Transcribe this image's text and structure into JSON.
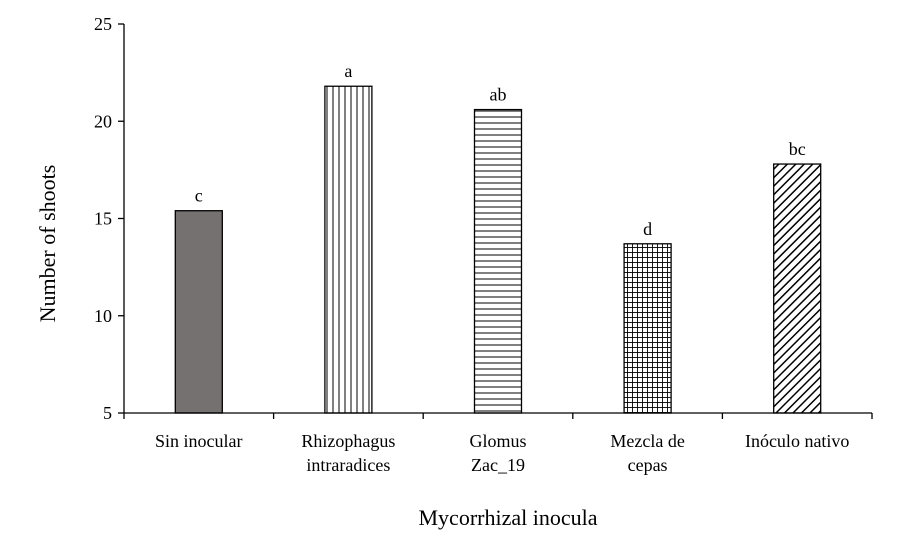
{
  "chart_data": {
    "type": "bar",
    "title": "",
    "xlabel": "Mycorrhizal inocula",
    "ylabel": "Number of shoots",
    "ylim": [
      5,
      25
    ],
    "yticks": [
      5,
      10,
      15,
      20,
      25
    ],
    "grid": false,
    "legend": "none",
    "categories": [
      [
        "Sin inocular"
      ],
      [
        "Rhizophagus",
        "intraradices"
      ],
      [
        "Glomus",
        "Zac_19"
      ],
      [
        "Mezcla de",
        "cepas"
      ],
      [
        "Inóculo nativo"
      ]
    ],
    "values": [
      15.4,
      21.8,
      20.6,
      13.7,
      17.8
    ],
    "significance_letters": [
      "c",
      "a",
      "ab",
      "d",
      "bc"
    ],
    "bar_fills": [
      "solid-gray",
      "vertical-lines",
      "horizontal-lines",
      "grid",
      "diagonal-hatch"
    ],
    "colors": {
      "solid": "#757171",
      "stroke": "#000000",
      "background": "#ffffff"
    }
  }
}
